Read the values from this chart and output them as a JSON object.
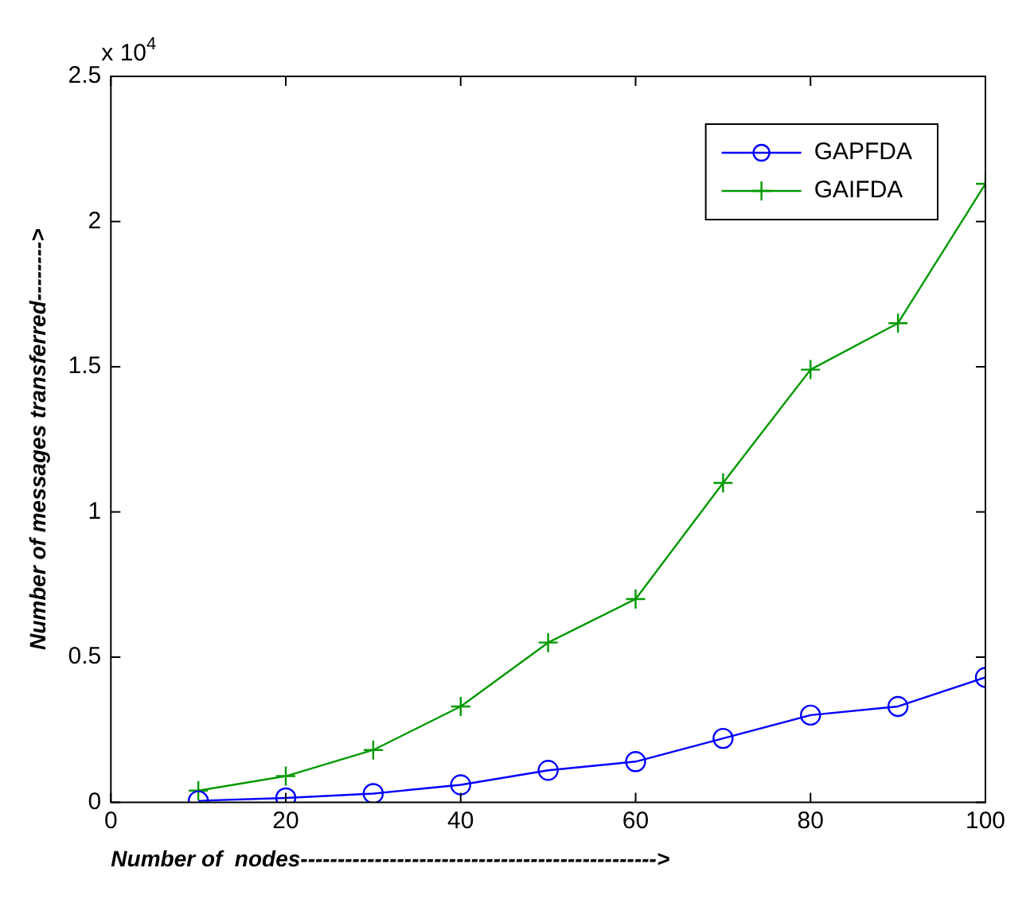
{
  "chart_data": {
    "type": "line",
    "xlabel": "Number of  nodes------------------------------------------------>",
    "ylabel": "Number of messages transferred-------->",
    "x": [
      10,
      20,
      30,
      40,
      50,
      60,
      70,
      80,
      90,
      100
    ],
    "series": [
      {
        "name": "GAPFDA",
        "color": "#0000ff",
        "marker": "circle",
        "values": [
          0.005,
          0.015,
          0.03,
          0.06,
          0.11,
          0.14,
          0.22,
          0.3,
          0.33,
          0.43
        ]
      },
      {
        "name": "GAIFDA",
        "color": "#009900",
        "marker": "cross",
        "values": [
          0.04,
          0.09,
          0.18,
          0.33,
          0.55,
          0.7,
          1.1,
          1.49,
          1.65,
          2.13
        ]
      }
    ],
    "annotations": [
      "x 10$^{4}$"
    ],
    "xlim": [
      0,
      100
    ],
    "xticks": [
      0,
      20,
      40,
      60,
      80,
      100
    ],
    "ylim": [
      0,
      2.5
    ],
    "yticks": [
      0,
      0.5,
      1,
      1.5,
      2,
      2.5
    ],
    "grid": false,
    "legend": "top right",
    "line_style": "solid"
  }
}
